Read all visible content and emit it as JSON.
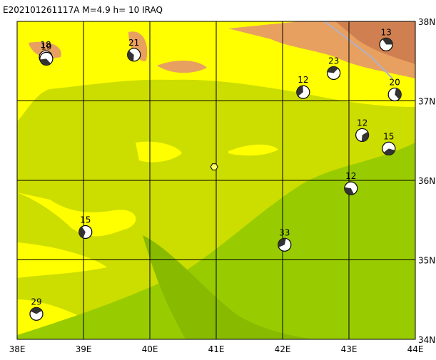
{
  "title": "E202101261117A  M=4.9  h= 10  IRAQ",
  "lonlim": [
    38,
    44
  ],
  "latlim": [
    34,
    38
  ],
  "lon_ticks": [
    {
      "value": 38,
      "label": "38E"
    },
    {
      "value": 39,
      "label": "39E"
    },
    {
      "value": 40,
      "label": "40E"
    },
    {
      "value": 41,
      "label": "41E"
    },
    {
      "value": 42,
      "label": "42E"
    },
    {
      "value": 43,
      "label": "43E"
    },
    {
      "value": 44,
      "label": "44E"
    }
  ],
  "lat_ticks": [
    {
      "value": 34,
      "label": "34N"
    },
    {
      "value": 35,
      "label": "35N"
    },
    {
      "value": 36,
      "label": "36N"
    },
    {
      "value": 37,
      "label": "37N"
    },
    {
      "value": 38,
      "label": "38N"
    }
  ],
  "epicenter": {
    "lon": 40.97,
    "lat": 36.17
  },
  "events": [
    {
      "label": "18",
      "lon": 38.43,
      "lat": 37.55
    },
    {
      "label": "19",
      "lon": 38.44,
      "lat": 37.53
    },
    {
      "label": "21",
      "lon": 39.76,
      "lat": 37.58
    },
    {
      "label": "12",
      "lon": 42.31,
      "lat": 37.11
    },
    {
      "label": "23",
      "lon": 42.77,
      "lat": 37.35
    },
    {
      "label": "13",
      "lon": 43.56,
      "lat": 37.71
    },
    {
      "label": "20",
      "lon": 43.69,
      "lat": 37.08
    },
    {
      "label": "12",
      "lon": 43.2,
      "lat": 36.57
    },
    {
      "label": "15",
      "lon": 43.6,
      "lat": 36.4
    },
    {
      "label": "12",
      "lon": 43.03,
      "lat": 35.9
    },
    {
      "label": "15",
      "lon": 39.03,
      "lat": 35.35
    },
    {
      "label": "33",
      "lon": 42.03,
      "lat": 35.19
    },
    {
      "label": "29",
      "lon": 38.29,
      "lat": 34.32
    }
  ]
}
